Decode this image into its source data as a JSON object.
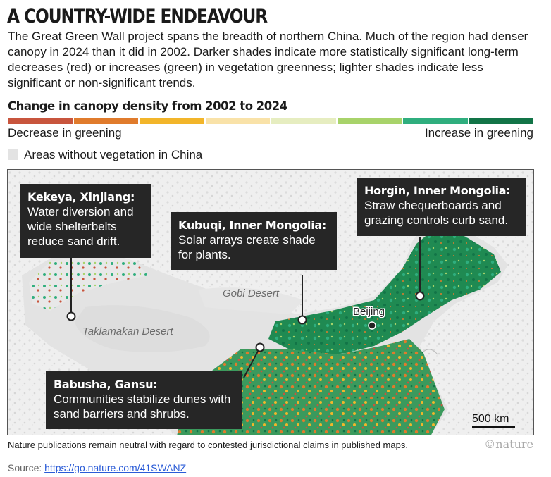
{
  "title": "A COUNTRY-WIDE ENDEAVOUR",
  "description": "The Great Green Wall project spans the breadth of northern China. Much of the region had denser canopy in 2024 than it did in 2002. Darker shades indicate more statistically significant long-term decreases (red) or increases (green) in vegetation greenness; lighter shades indicate less significant or non-significant trends.",
  "legend": {
    "title": "Change in canopy density from 2002 to 2024",
    "colors": [
      "#c8553d",
      "#e07b2c",
      "#f2b52a",
      "#f9e2a8",
      "#e6edc0",
      "#a8d36a",
      "#2fae7e",
      "#127447"
    ],
    "low_label": "Decrease in greening",
    "high_label": "Increase in greening",
    "no_vegetation_label": "Areas without vegetation in China",
    "no_vegetation_color": "#e3e3e3"
  },
  "map": {
    "labels": {
      "gobi": "Gobi Desert",
      "taklamakan": "Taklamakan Desert",
      "beijing": "Beijing",
      "scale": "500 km"
    },
    "callouts": {
      "kekeya": {
        "name": "Kekeya, Xinjiang",
        "text": "Water diversion and wide shelterbelts reduce sand drift."
      },
      "kubuqi": {
        "name": "Kubuqi, Inner Mongolia",
        "text": "Solar arrays create shade for plants."
      },
      "horgin": {
        "name": "Horgin, Inner Mongolia",
        "text": "Straw chequerboards and grazing controls curb sand."
      },
      "babusha": {
        "name": "Babusha, Gansu",
        "text": "Communities stabilize dunes with sand barriers and shrubs."
      }
    }
  },
  "footnote": "Nature publications remain neutral with regard to contested jurisdictional claims in published maps.",
  "brand": "©nature",
  "source": {
    "prefix": "Source: ",
    "link": "https://go.nature.com/41SWANZ"
  }
}
